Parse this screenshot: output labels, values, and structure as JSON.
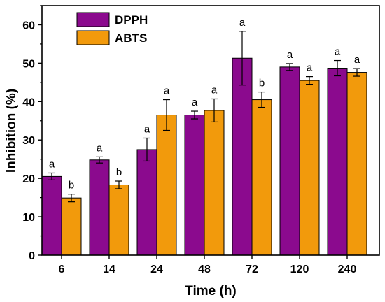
{
  "chart_data": {
    "type": "bar",
    "title": "",
    "xlabel": "Time (h)",
    "ylabel": "Inhibition (%)",
    "ylim": [
      0,
      65
    ],
    "yticks": [
      0,
      10,
      20,
      30,
      40,
      50,
      60
    ],
    "categories": [
      "6",
      "14",
      "24",
      "48",
      "72",
      "120",
      "240"
    ],
    "legend_position": "top-left",
    "grid": false,
    "series": [
      {
        "name": "DPPH",
        "color": "#8B0A8E",
        "values": [
          20.5,
          24.8,
          27.5,
          36.5,
          51.3,
          49.0,
          48.7
        ],
        "errors": [
          0.9,
          0.8,
          3.0,
          1.0,
          7.0,
          0.9,
          2.0
        ],
        "letters": [
          "a",
          "a",
          "a",
          "a",
          "a",
          "a",
          "a"
        ]
      },
      {
        "name": "ABTS",
        "color": "#F29A0C",
        "values": [
          14.9,
          18.3,
          36.5,
          37.7,
          40.5,
          45.5,
          47.6
        ],
        "errors": [
          1.0,
          1.0,
          4.0,
          3.0,
          2.0,
          1.0,
          1.0
        ],
        "letters": [
          "b",
          "b",
          "a",
          "a",
          "b",
          "a",
          "a"
        ]
      }
    ]
  }
}
